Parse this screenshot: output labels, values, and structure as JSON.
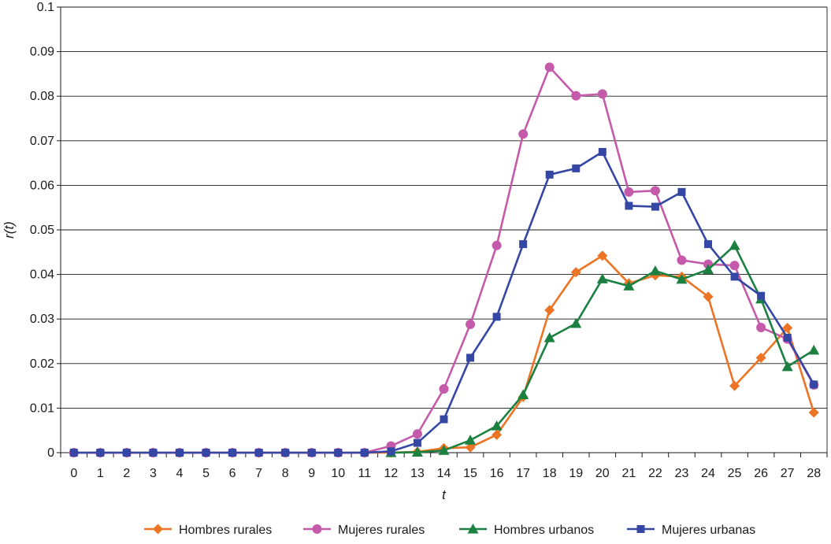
{
  "chart_data": {
    "type": "line",
    "xlabel": "t",
    "ylabel": "r(t)",
    "x": [
      0,
      1,
      2,
      3,
      4,
      5,
      6,
      7,
      8,
      9,
      10,
      11,
      12,
      13,
      14,
      15,
      16,
      17,
      18,
      19,
      20,
      21,
      22,
      23,
      24,
      25,
      26,
      27,
      28
    ],
    "ylim": [
      0,
      0.1
    ],
    "yticks": [
      "0",
      "0.01",
      "0.02",
      "0.03",
      "0.04",
      "0.05",
      "0.06",
      "0.07",
      "0.08",
      "0.09",
      "0.1"
    ],
    "grid": "horizontal",
    "legend_position": "bottom",
    "series": [
      {
        "name": "Hombres rurales",
        "color": "#ed7424",
        "marker": "diamond",
        "x": [
          0,
          1,
          2,
          3,
          4,
          5,
          6,
          7,
          8,
          9,
          10,
          11,
          12,
          13,
          14,
          15,
          16,
          17,
          18,
          19,
          20,
          21,
          22,
          23,
          24,
          25,
          26,
          27,
          28
        ],
        "values": [
          0,
          0,
          0,
          0,
          0,
          0,
          0,
          0,
          0,
          0,
          0,
          0,
          0,
          0.0002,
          0.001,
          0.0012,
          0.004,
          0.0125,
          0.032,
          0.0405,
          0.0442,
          0.038,
          0.0398,
          0.0395,
          0.035,
          0.015,
          0.0213,
          0.028,
          0.009
        ]
      },
      {
        "name": "Mujeres rurales",
        "color": "#c55aaa",
        "marker": "circle",
        "x": [
          0,
          1,
          2,
          3,
          4,
          5,
          6,
          7,
          8,
          9,
          10,
          11,
          12,
          13,
          14,
          15,
          16,
          17,
          18,
          19,
          20,
          21,
          22,
          23,
          24,
          25,
          26,
          27,
          28
        ],
        "values": [
          0,
          0,
          0,
          0,
          0,
          0,
          0,
          0,
          0,
          0,
          0,
          0,
          0.0015,
          0.0042,
          0.0143,
          0.0288,
          0.0465,
          0.0715,
          0.0865,
          0.0801,
          0.0805,
          0.0585,
          0.0588,
          0.0432,
          0.0423,
          0.042,
          0.0281,
          0.0255,
          0.0152
        ]
      },
      {
        "name": "Hombres urbanos",
        "color": "#1b8040",
        "marker": "triangle",
        "x": [
          12,
          13,
          14,
          15,
          16,
          17,
          18,
          19,
          20,
          21,
          22,
          23,
          24,
          25,
          26,
          27,
          28
        ],
        "values": [
          0,
          0.0001,
          0.0005,
          0.0028,
          0.006,
          0.013,
          0.0258,
          0.029,
          0.039,
          0.0374,
          0.0408,
          0.0389,
          0.0411,
          0.0465,
          0.0345,
          0.0193,
          0.023
        ]
      },
      {
        "name": "Mujeres urbanas",
        "color": "#3547a5",
        "marker": "square",
        "x": [
          0,
          1,
          2,
          3,
          4,
          5,
          6,
          7,
          8,
          9,
          10,
          11,
          12,
          13,
          14,
          15,
          16,
          17,
          18,
          19,
          20,
          21,
          22,
          23,
          24,
          25,
          26,
          27,
          28
        ],
        "values": [
          0,
          0,
          0,
          0,
          0,
          0,
          0,
          0,
          0,
          0,
          0,
          0,
          0.0003,
          0.0022,
          0.0075,
          0.0213,
          0.0305,
          0.0468,
          0.0624,
          0.0638,
          0.0675,
          0.0554,
          0.0552,
          0.0585,
          0.0468,
          0.0395,
          0.0352,
          0.0258,
          0.0153
        ]
      }
    ]
  }
}
